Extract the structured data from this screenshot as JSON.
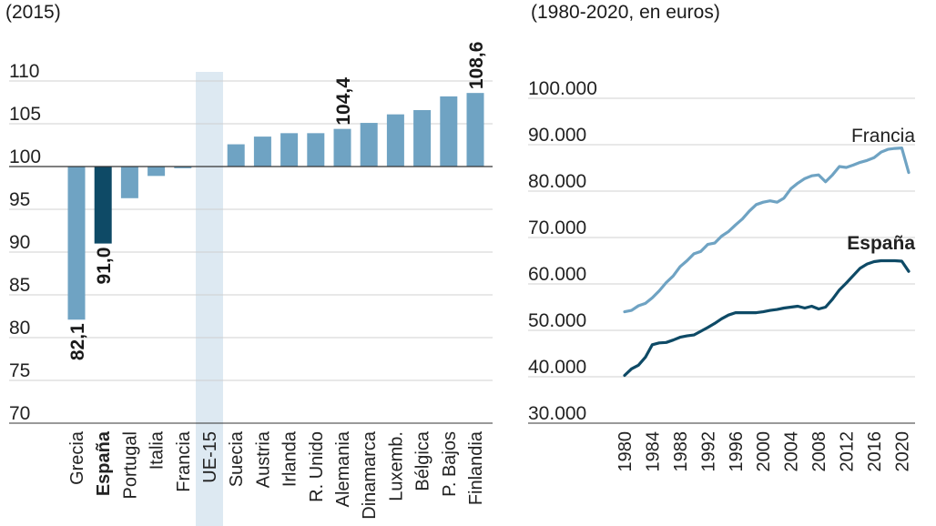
{
  "left_subtitle": "(2015)",
  "right_subtitle": "(1980-2020, en euros)",
  "colors": {
    "bar": "#6fa3c3",
    "bar_highlight": "#0e4a66",
    "ue_band": "#dde9f2",
    "grid": "#d0d0d0",
    "axis": "#333333",
    "francia_line": "#6fa3c3",
    "espana_line": "#0e4a66"
  },
  "chart_data": [
    {
      "type": "bar",
      "title": "",
      "baseline": 100,
      "ylim": [
        70,
        110
      ],
      "yticks": [
        "110",
        "105",
        "100",
        "95",
        "90",
        "85",
        "80",
        "75",
        "70"
      ],
      "ytick_values": [
        110,
        105,
        100,
        95,
        90,
        85,
        80,
        75,
        70
      ],
      "categories": [
        "Grecia",
        "España",
        "Portugal",
        "Italia",
        "Francia",
        "UE-15",
        "Suecia",
        "Austria",
        "Irlanda",
        "R. Unido",
        "Alemania",
        "Dinamarca",
        "Luxemb.",
        "Bélgica",
        "P. Bajos",
        "Finlandia"
      ],
      "values": [
        82.1,
        91.0,
        96.3,
        98.9,
        99.8,
        100,
        102.6,
        103.5,
        103.9,
        103.9,
        104.4,
        105.1,
        106.1,
        106.6,
        108.2,
        108.6
      ],
      "highlight": "España",
      "band_category": "UE-15",
      "data_labels": [
        {
          "category": "Grecia",
          "text": "82,1"
        },
        {
          "category": "España",
          "text": "91,0"
        },
        {
          "category": "Alemania",
          "text": "104,4"
        },
        {
          "category": "Finlandia",
          "text": "108,6"
        }
      ]
    },
    {
      "type": "line",
      "title": "",
      "ylim": [
        30000,
        100000
      ],
      "yticks": [
        "100.000",
        "90.000",
        "80.000",
        "70.000",
        "60.000",
        "50.000",
        "40.000",
        "30.000"
      ],
      "ytick_values": [
        100000,
        90000,
        80000,
        70000,
        60000,
        50000,
        40000,
        30000
      ],
      "xticks": [
        "1980",
        "1984",
        "1988",
        "1992",
        "1996",
        "2000",
        "2004",
        "2008",
        "2012",
        "2016",
        "2020"
      ],
      "xtick_values": [
        1980,
        1984,
        1988,
        1992,
        1996,
        2000,
        2004,
        2008,
        2012,
        2016,
        2020
      ],
      "x": [
        1980,
        1981,
        1982,
        1983,
        1984,
        1985,
        1986,
        1987,
        1988,
        1989,
        1990,
        1991,
        1992,
        1993,
        1994,
        1995,
        1996,
        1997,
        1998,
        1999,
        2000,
        2001,
        2002,
        2003,
        2004,
        2005,
        2006,
        2007,
        2008,
        2009,
        2010,
        2011,
        2012,
        2013,
        2014,
        2015,
        2016,
        2017,
        2018,
        2019,
        2020,
        2021
      ],
      "series": [
        {
          "name": "Francia",
          "values": [
            54000,
            54300,
            55300,
            55800,
            57000,
            58500,
            60300,
            61700,
            63700,
            65000,
            66500,
            67000,
            68500,
            68800,
            70300,
            71300,
            72700,
            74000,
            75700,
            77100,
            77600,
            77900,
            77600,
            78500,
            80500,
            81700,
            82700,
            83300,
            83500,
            82000,
            83500,
            85300,
            85100,
            85600,
            86200,
            86600,
            87200,
            88400,
            89000,
            89200,
            89300,
            84000
          ]
        },
        {
          "name": "España",
          "values": [
            40300,
            41700,
            42500,
            44200,
            46900,
            47300,
            47400,
            47900,
            48500,
            48800,
            49000,
            49800,
            50600,
            51500,
            52500,
            53300,
            53800,
            53800,
            53800,
            53800,
            54000,
            54300,
            54500,
            54800,
            55000,
            55200,
            54800,
            55200,
            54600,
            55000,
            56700,
            58700,
            60200,
            61800,
            63400,
            64300,
            64800,
            65000,
            65000,
            65000,
            64900,
            62700
          ]
        }
      ]
    }
  ]
}
